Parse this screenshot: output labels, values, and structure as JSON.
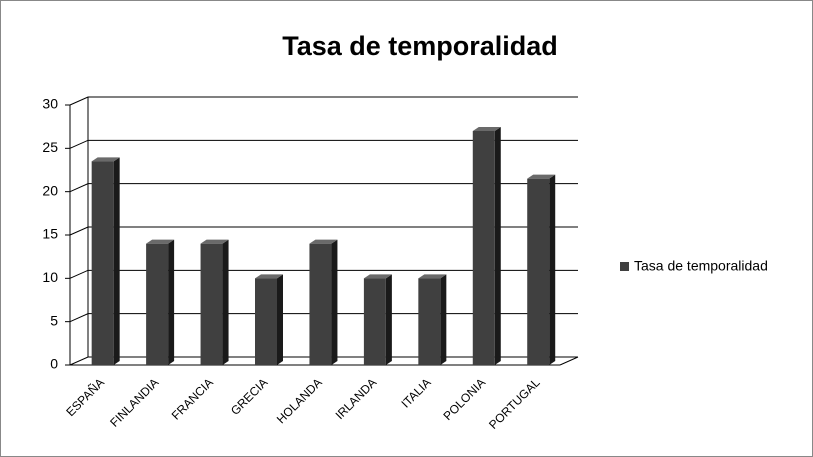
{
  "chart_data": {
    "type": "bar",
    "title": "Tasa de temporalidad",
    "categories": [
      "ESPAÑA",
      "FINLANDIA",
      "FRANCIA",
      "GRECIA",
      "HOLANDA",
      "IRLANDA",
      "ITALIA",
      "POLONIA",
      "PORTUGAL"
    ],
    "series": [
      {
        "name": "Tasa de temporalidad",
        "color": "#404040",
        "values": [
          23.5,
          14,
          14,
          10,
          14,
          10,
          10,
          27,
          21.5
        ]
      }
    ],
    "ylim": [
      0,
      30
    ],
    "yticks": [
      0,
      5,
      10,
      15,
      20,
      25,
      30
    ],
    "grid": true,
    "legend": "right"
  }
}
